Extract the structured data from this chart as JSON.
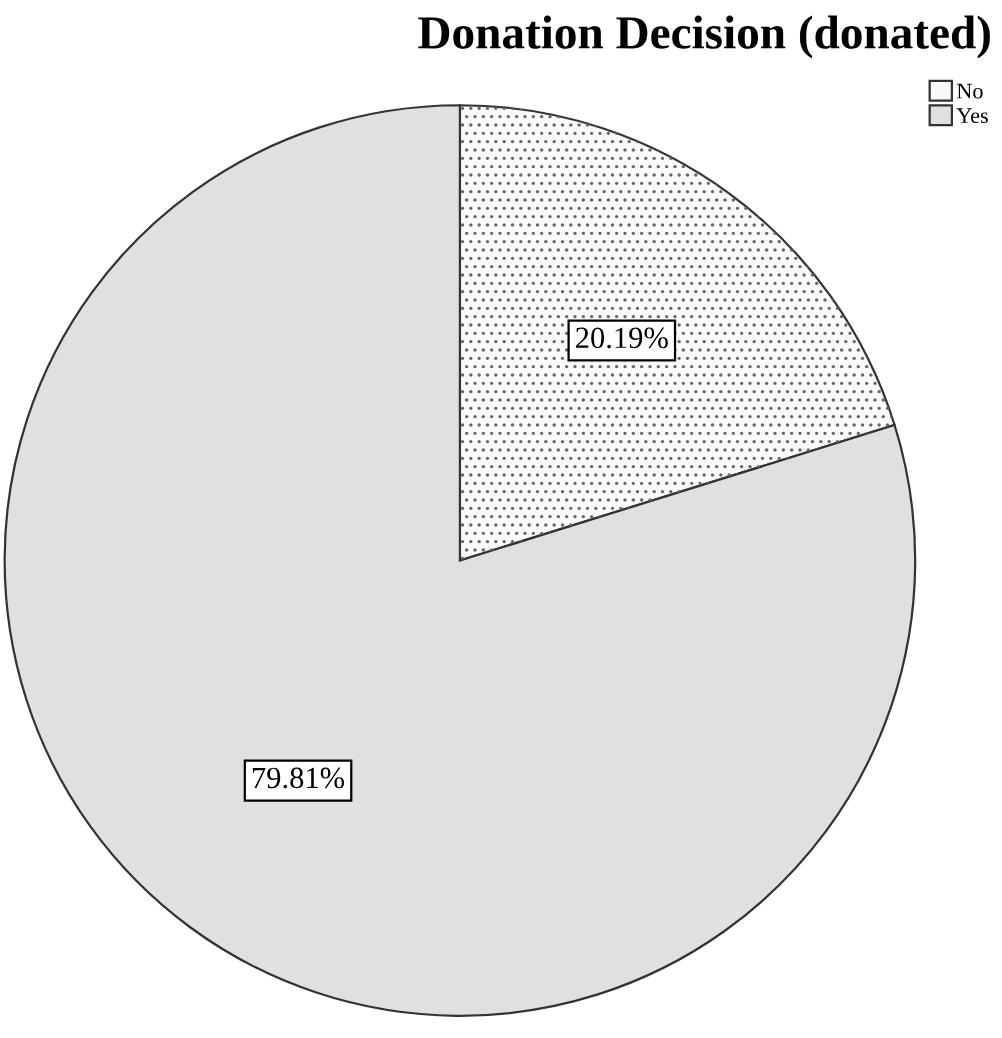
{
  "chart_data": {
    "type": "pie",
    "title": "Donation Decision (donated)",
    "categories": [
      "No",
      "Yes"
    ],
    "values": [
      20.19,
      79.81
    ],
    "colors": [
      "#fafafa",
      "#e0e0e0"
    ],
    "value_labels": [
      "20.19%",
      "79.81%"
    ],
    "legend": "top right"
  }
}
